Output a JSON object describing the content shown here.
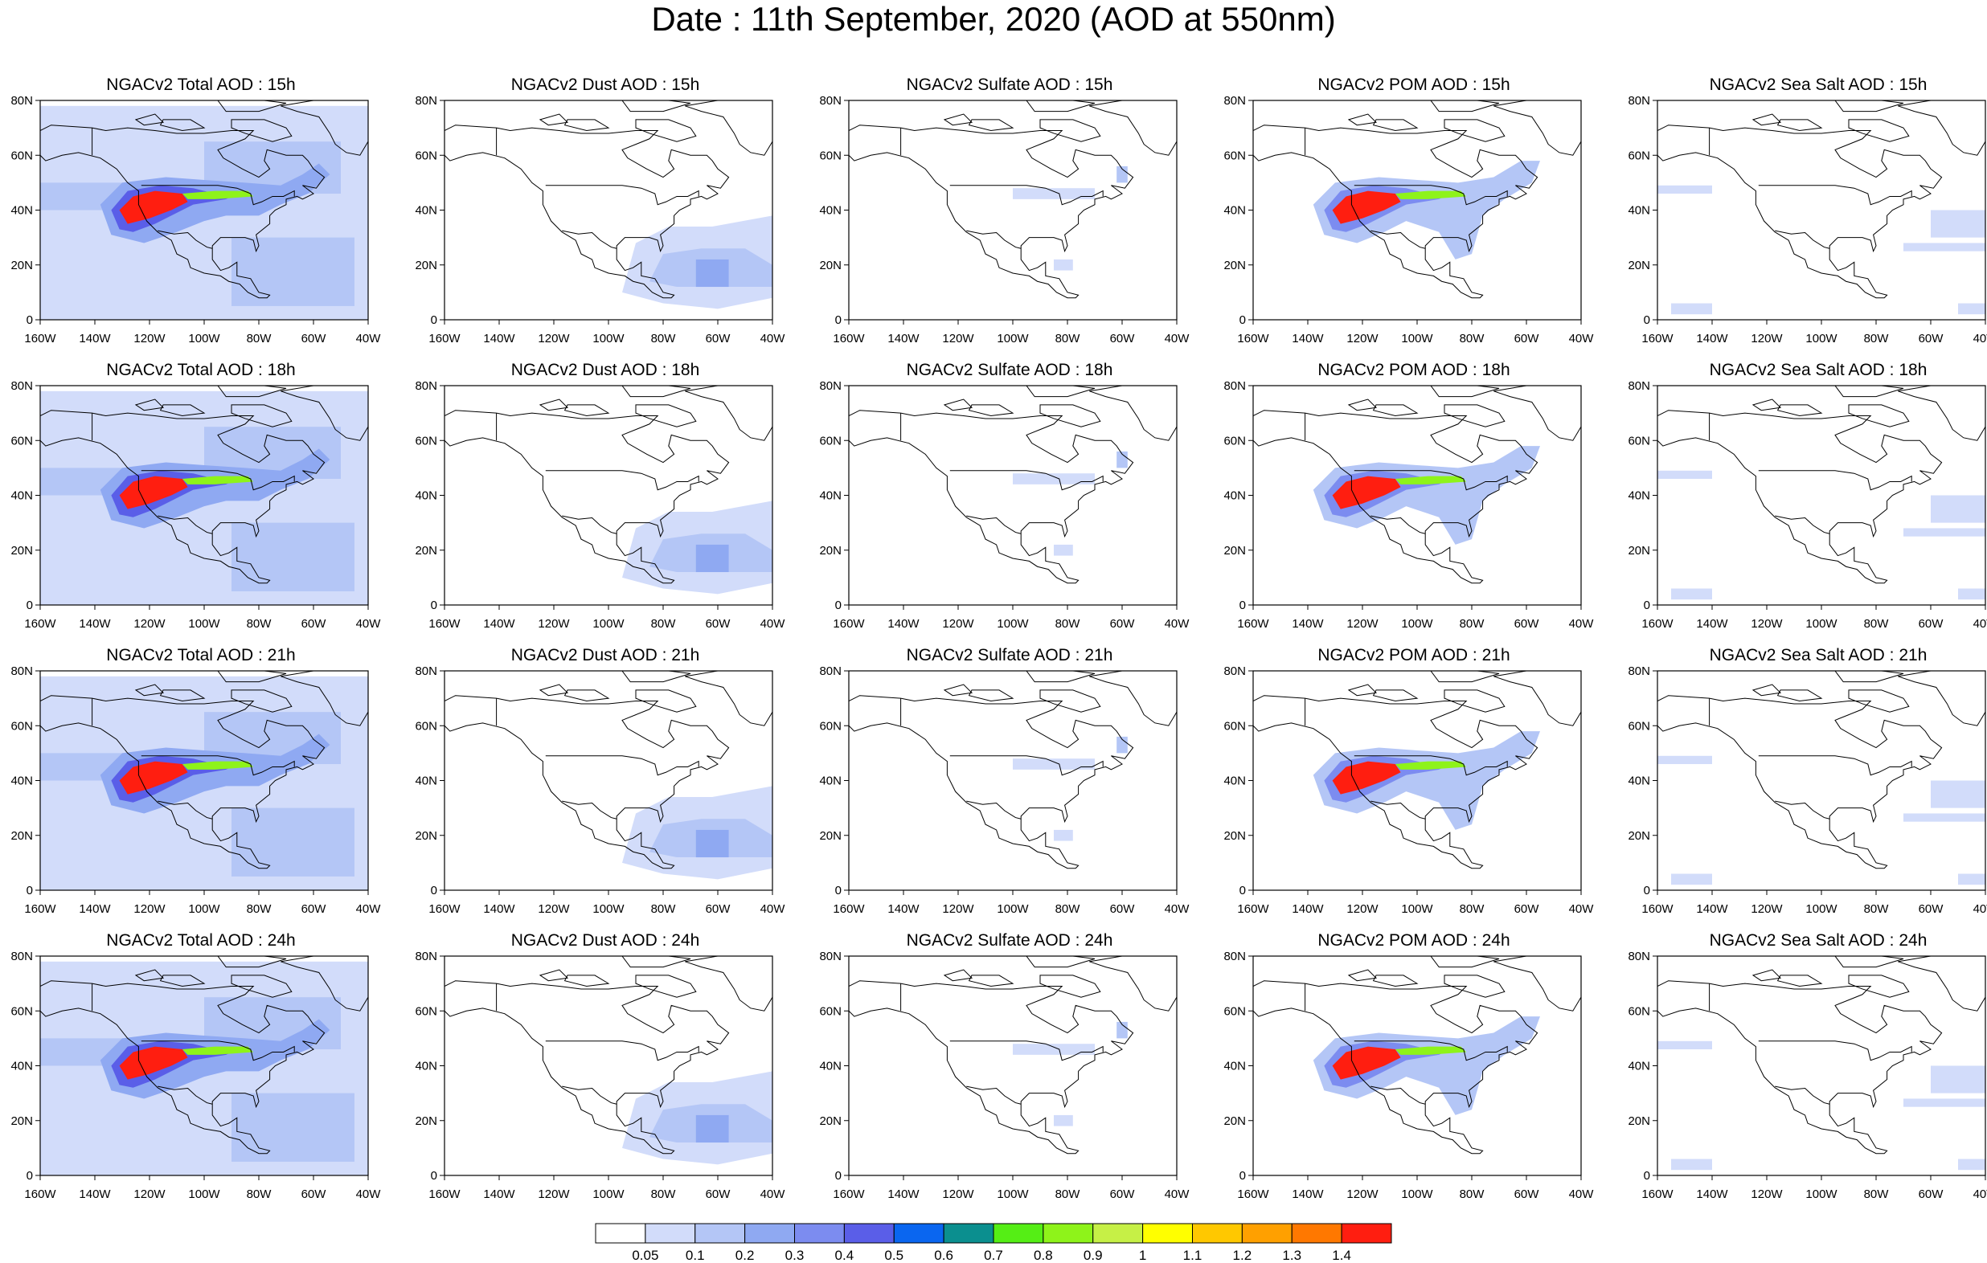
{
  "title": "Date : 11th September, 2020 (AOD at 550nm)",
  "lat_labels": [
    "80N",
    "60N",
    "40N",
    "20N",
    "0"
  ],
  "lon_labels": [
    "160W",
    "140W",
    "120W",
    "100W",
    "80W",
    "60W",
    "40W"
  ],
  "species": [
    {
      "key": "total",
      "titles": [
        "NGACv2 Total AOD : 15h",
        "NGACv2 Total AOD : 18h",
        "NGACv2 Total AOD : 21h",
        "NGACv2 Total AOD : 24h"
      ]
    },
    {
      "key": "dust",
      "titles": [
        "NGACv2 Dust AOD : 15h",
        "NGACv2 Dust AOD : 18h",
        "NGACv2 Dust AOD : 21h",
        "NGACv2 Dust AOD : 24h"
      ]
    },
    {
      "key": "sulfate",
      "titles": [
        "NGACv2 Sulfate AOD : 15h",
        "NGACv2 Sulfate AOD : 18h",
        "NGACv2 Sulfate AOD : 21h",
        "NGACv2 Sulfate AOD : 24h"
      ]
    },
    {
      "key": "pom",
      "titles": [
        "NGACv2 POM AOD : 15h",
        "NGACv2 POM AOD : 18h",
        "NGACv2 POM AOD : 21h",
        "NGACv2 POM AOD : 24h"
      ]
    },
    {
      "key": "seasalt",
      "titles": [
        "NGACv2 Sea Salt AOD : 15h",
        "NGACv2 Sea Salt AOD : 18h",
        "NGACv2 Sea Salt AOD : 21h",
        "NGACv2 Sea Salt  AOD : 24h"
      ]
    }
  ],
  "colorbar": {
    "labels": [
      "0.05",
      "0.1",
      "0.2",
      "0.3",
      "0.4",
      "0.5",
      "0.6",
      "0.7",
      "0.8",
      "0.9",
      "1",
      "1.1",
      "1.2",
      "1.3",
      "1.4"
    ],
    "colors": [
      "#ffffff",
      "#d2dcfa",
      "#b4c6f6",
      "#8fa9f2",
      "#7c8cf0",
      "#5a5ee8",
      "#0a66f0",
      "#0b8f8f",
      "#55ee15",
      "#8ef31a",
      "#c6f046",
      "#ffff00",
      "#ffc800",
      "#ffa000",
      "#ff7800",
      "#ff1e10"
    ]
  }
}
